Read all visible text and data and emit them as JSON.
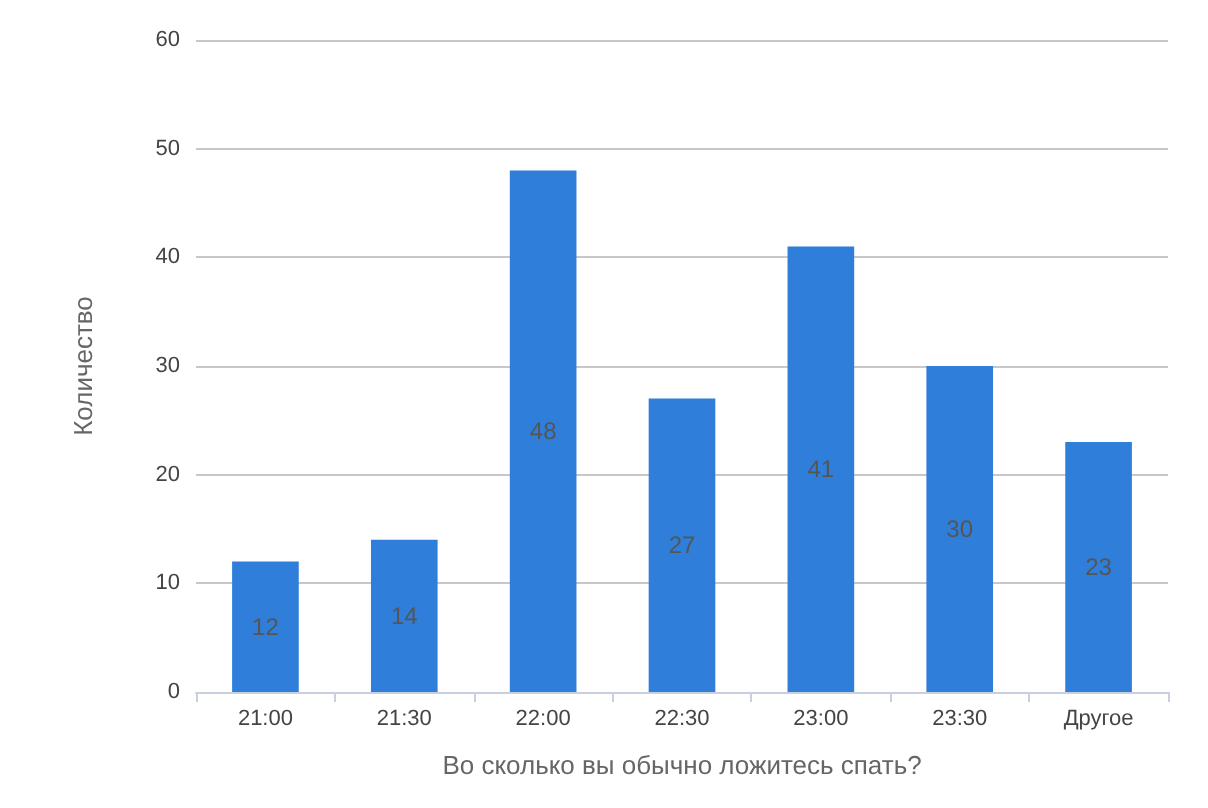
{
  "chart_data": {
    "type": "bar",
    "xlabel": "Во сколько вы обычно ложитесь спать?",
    "ylabel": "Количество",
    "categories": [
      "21:00",
      "21:30",
      "22:00",
      "22:30",
      "23:00",
      "23:30",
      "Другое"
    ],
    "values": [
      12,
      14,
      48,
      27,
      41,
      30,
      23
    ],
    "color": "#2f7fda",
    "ylim": [
      0,
      60
    ],
    "yticks": [
      0,
      10,
      20,
      30,
      40,
      50,
      60
    ],
    "grid": "y",
    "data_labels": true
  }
}
